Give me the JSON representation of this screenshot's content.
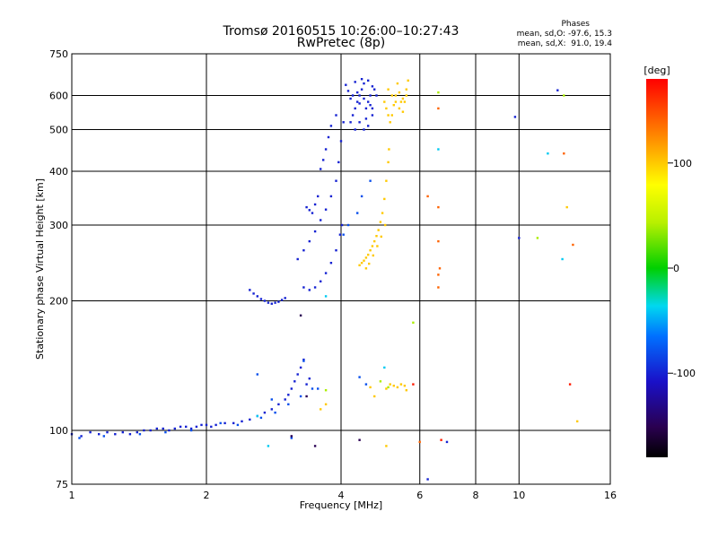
{
  "chart_data": {
    "type": "scatter",
    "title": "Tromsø 20160515 10:26:00–10:27:43",
    "subtitle": "RwPretec (8p)",
    "xlabel": "Frequency [MHz]",
    "ylabel": "Stationary phase Virtual Height [km]",
    "x_scale": "log",
    "y_scale": "log",
    "xlim": [
      1,
      16
    ],
    "ylim": [
      75,
      750
    ],
    "x_ticks": [
      1,
      2,
      4,
      6,
      8,
      10,
      16
    ],
    "x_tick_labels": [
      "1",
      "2",
      "4",
      "6",
      "8",
      "10",
      "16"
    ],
    "y_ticks": [
      75,
      100,
      200,
      300,
      400,
      500,
      600,
      750
    ],
    "y_tick_labels": [
      "75",
      "100",
      "200",
      "300",
      "400",
      "500",
      "600",
      "750"
    ],
    "grid": true,
    "phase_stats": {
      "heading": "Phases",
      "o_line": "mean, sd,O: -97.6, 15.3",
      "x_line": "mean, sd,X:  91.0, 19.4"
    },
    "colorbar": {
      "label": "[deg]",
      "range": [
        -180,
        180
      ],
      "ticks": [
        100,
        0,
        -100
      ],
      "tick_labels": [
        "100",
        "0",
        "-100"
      ]
    },
    "series": [
      {
        "color_phase": -100,
        "points": [
          [
            1.0,
            98
          ],
          [
            1.05,
            97
          ],
          [
            1.1,
            99
          ],
          [
            1.15,
            98
          ],
          [
            1.2,
            99
          ],
          [
            1.25,
            98
          ],
          [
            1.3,
            99
          ],
          [
            1.35,
            98
          ],
          [
            1.4,
            99
          ],
          [
            1.45,
            100
          ],
          [
            1.5,
            100
          ],
          [
            1.55,
            101
          ],
          [
            1.6,
            101
          ],
          [
            1.65,
            100
          ],
          [
            1.7,
            101
          ],
          [
            1.75,
            102
          ],
          [
            1.8,
            102
          ],
          [
            1.85,
            101
          ],
          [
            1.9,
            102
          ],
          [
            1.95,
            103
          ],
          [
            2.0,
            103
          ],
          [
            2.05,
            102
          ],
          [
            2.1,
            103
          ],
          [
            2.2,
            104
          ],
          [
            2.3,
            104
          ],
          [
            2.4,
            105
          ],
          [
            2.5,
            106
          ],
          [
            2.6,
            108
          ],
          [
            2.7,
            110
          ],
          [
            2.8,
            112
          ],
          [
            2.9,
            115
          ],
          [
            3.0,
            118
          ],
          [
            3.05,
            121
          ],
          [
            3.1,
            125
          ],
          [
            3.15,
            130
          ],
          [
            3.2,
            135
          ],
          [
            3.25,
            140
          ],
          [
            3.3,
            146
          ],
          [
            3.35,
            128
          ],
          [
            3.4,
            132
          ],
          [
            2.5,
            212
          ],
          [
            2.55,
            208
          ],
          [
            2.6,
            205
          ],
          [
            2.65,
            202
          ],
          [
            2.7,
            200
          ],
          [
            2.75,
            198
          ],
          [
            2.8,
            197
          ],
          [
            2.85,
            198
          ],
          [
            2.9,
            199
          ],
          [
            2.95,
            201
          ],
          [
            3.0,
            203
          ],
          [
            3.2,
            250
          ],
          [
            3.3,
            262
          ],
          [
            3.4,
            275
          ],
          [
            3.5,
            290
          ],
          [
            3.6,
            308
          ],
          [
            3.7,
            326
          ],
          [
            3.8,
            350
          ],
          [
            3.9,
            380
          ],
          [
            3.95,
            420
          ],
          [
            4.0,
            470
          ],
          [
            4.05,
            520
          ],
          [
            3.3,
            215
          ],
          [
            3.4,
            212
          ],
          [
            3.5,
            215
          ],
          [
            3.6,
            222
          ],
          [
            3.7,
            232
          ],
          [
            3.8,
            245
          ],
          [
            3.9,
            262
          ],
          [
            3.98,
            285
          ],
          [
            4.02,
            300
          ],
          [
            3.35,
            330
          ],
          [
            3.4,
            325
          ],
          [
            3.45,
            320
          ],
          [
            3.5,
            335
          ],
          [
            3.55,
            350
          ],
          [
            3.6,
            405
          ],
          [
            3.65,
            425
          ],
          [
            3.7,
            450
          ],
          [
            3.75,
            480
          ],
          [
            3.8,
            510
          ],
          [
            3.9,
            540
          ],
          [
            4.2,
            520
          ],
          [
            4.25,
            540
          ],
          [
            4.3,
            560
          ],
          [
            4.35,
            580
          ],
          [
            4.4,
            600
          ],
          [
            4.45,
            620
          ],
          [
            4.5,
            640
          ],
          [
            4.55,
            560
          ],
          [
            4.6,
            580
          ],
          [
            4.65,
            600
          ],
          [
            4.7,
            630
          ],
          [
            4.3,
            500
          ],
          [
            4.4,
            520
          ],
          [
            4.5,
            500
          ],
          [
            4.6,
            510
          ],
          [
            4.7,
            540
          ],
          [
            4.2,
            590
          ],
          [
            4.35,
            610
          ],
          [
            4.5,
            590
          ],
          [
            4.65,
            570
          ],
          [
            4.75,
            620
          ],
          [
            4.1,
            635
          ],
          [
            4.15,
            615
          ],
          [
            4.25,
            600
          ],
          [
            4.4,
            575
          ],
          [
            4.55,
            530
          ],
          [
            4.7,
            560
          ],
          [
            4.8,
            600
          ],
          [
            4.6,
            650
          ],
          [
            4.45,
            655
          ],
          [
            4.3,
            645
          ],
          [
            6.9,
            94
          ],
          [
            6.25,
            77
          ],
          [
            9.8,
            535
          ],
          [
            10.0,
            280
          ],
          [
            12.2,
            617
          ]
        ]
      },
      {
        "color_phase": -80,
        "points": [
          [
            1.04,
            96
          ],
          [
            1.18,
            97
          ],
          [
            1.42,
            98
          ],
          [
            1.62,
            99
          ],
          [
            1.85,
            100
          ],
          [
            2.15,
            104
          ],
          [
            2.35,
            103
          ],
          [
            2.65,
            107
          ],
          [
            2.85,
            110
          ],
          [
            3.05,
            115
          ],
          [
            3.25,
            120
          ],
          [
            2.6,
            135
          ],
          [
            2.8,
            118
          ],
          [
            3.1,
            96
          ],
          [
            3.3,
            145
          ],
          [
            3.45,
            125
          ],
          [
            3.55,
            125
          ],
          [
            4.4,
            133
          ],
          [
            4.55,
            128
          ],
          [
            4.05,
            285
          ],
          [
            4.15,
            300
          ],
          [
            4.35,
            320
          ],
          [
            4.45,
            350
          ],
          [
            4.65,
            380
          ]
        ]
      },
      {
        "color_phase": -40,
        "points": [
          [
            2.6,
            108
          ],
          [
            2.75,
            92
          ],
          [
            3.7,
            205
          ],
          [
            5.0,
            140
          ],
          [
            6.6,
            450
          ],
          [
            12.5,
            250
          ],
          [
            11.6,
            440
          ]
        ]
      },
      {
        "color_phase": 40,
        "points": [
          [
            4.9,
            130
          ],
          [
            5.1,
            126
          ],
          [
            3.7,
            124
          ],
          [
            5.8,
            178
          ],
          [
            6.6,
            610
          ],
          [
            12.6,
            600
          ],
          [
            11.0,
            280
          ]
        ]
      },
      {
        "color_phase": 100,
        "points": [
          [
            4.4,
            242
          ],
          [
            4.45,
            245
          ],
          [
            4.5,
            248
          ],
          [
            4.55,
            252
          ],
          [
            4.6,
            256
          ],
          [
            4.65,
            262
          ],
          [
            4.7,
            268
          ],
          [
            4.75,
            275
          ],
          [
            4.8,
            283
          ],
          [
            4.85,
            292
          ],
          [
            4.9,
            305
          ],
          [
            4.95,
            320
          ],
          [
            5.0,
            345
          ],
          [
            5.05,
            380
          ],
          [
            5.1,
            420
          ],
          [
            5.12,
            450
          ],
          [
            4.55,
            238
          ],
          [
            4.62,
            244
          ],
          [
            4.72,
            255
          ],
          [
            4.82,
            268
          ],
          [
            4.92,
            282
          ],
          [
            5.02,
            300
          ],
          [
            5.0,
            580
          ],
          [
            5.05,
            560
          ],
          [
            5.1,
            540
          ],
          [
            5.15,
            520
          ],
          [
            5.2,
            540
          ],
          [
            5.25,
            570
          ],
          [
            5.3,
            600
          ],
          [
            5.35,
            640
          ],
          [
            5.4,
            610
          ],
          [
            5.45,
            580
          ],
          [
            5.5,
            550
          ],
          [
            5.55,
            580
          ],
          [
            5.6,
            620
          ],
          [
            5.65,
            650
          ],
          [
            5.1,
            620
          ],
          [
            5.2,
            600
          ],
          [
            5.3,
            580
          ],
          [
            5.4,
            560
          ],
          [
            5.5,
            590
          ],
          [
            5.6,
            600
          ],
          [
            5.05,
            125
          ],
          [
            5.15,
            128
          ],
          [
            5.25,
            127
          ],
          [
            5.35,
            126
          ],
          [
            5.45,
            128
          ],
          [
            5.55,
            127
          ],
          [
            5.6,
            124
          ],
          [
            3.6,
            112
          ],
          [
            3.7,
            115
          ],
          [
            4.65,
            126
          ],
          [
            4.75,
            120
          ],
          [
            5.05,
            92
          ],
          [
            12.8,
            330
          ],
          [
            13.5,
            105
          ]
        ]
      },
      {
        "color_phase": 140,
        "points": [
          [
            6.0,
            94
          ],
          [
            6.25,
            350
          ],
          [
            6.6,
            560
          ],
          [
            6.6,
            330
          ],
          [
            6.6,
            275
          ],
          [
            6.6,
            230
          ],
          [
            6.6,
            215
          ],
          [
            6.65,
            238
          ],
          [
            12.6,
            440
          ],
          [
            13.2,
            270
          ]
        ]
      },
      {
        "color_phase": -150,
        "points": [
          [
            3.1,
            97
          ],
          [
            3.25,
            185
          ],
          [
            3.35,
            120
          ],
          [
            3.5,
            92
          ],
          [
            4.4,
            95
          ]
        ]
      },
      {
        "color_phase": 170,
        "points": [
          [
            6.7,
            95
          ],
          [
            13.0,
            128
          ],
          [
            5.8,
            128
          ]
        ]
      }
    ]
  }
}
